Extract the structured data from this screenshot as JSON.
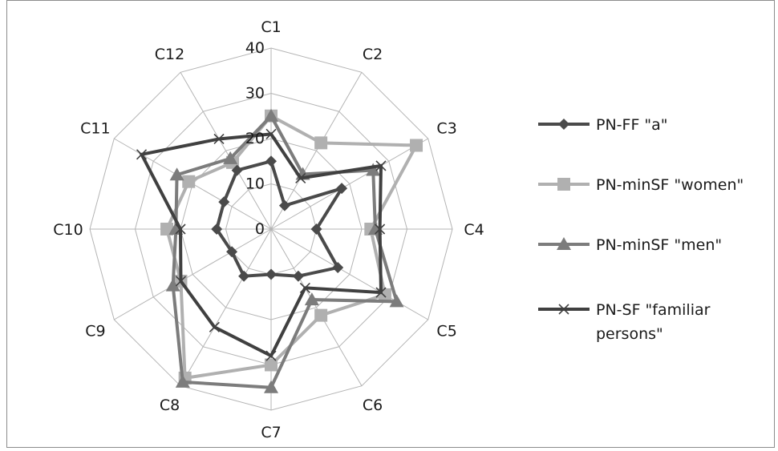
{
  "chart_data": {
    "type": "radar",
    "categories": [
      "C1",
      "C2",
      "C3",
      "C4",
      "C5",
      "C6",
      "C7",
      "C8",
      "C9",
      "C10",
      "C11",
      "C12"
    ],
    "rlim": [
      0,
      40
    ],
    "ticks": [
      "0",
      "10",
      "20",
      "30",
      "40"
    ],
    "tick_values": [
      0,
      10,
      20,
      30,
      40
    ],
    "grid": true,
    "legend_position": "right",
    "series": [
      {
        "name": "PN-FF \"a\"",
        "color": "#4a4a4a",
        "marker": "diamond",
        "values": [
          15,
          6,
          18,
          10,
          17,
          12,
          10,
          12,
          10,
          12,
          12,
          15
        ]
      },
      {
        "name": "PN-minSF \"women\"",
        "color": "#b0b0b0",
        "marker": "square",
        "values": [
          25,
          22,
          37,
          22,
          29,
          22,
          30,
          38,
          23,
          23,
          21,
          17
        ]
      },
      {
        "name": "PN-minSF \"men\"",
        "color": "#7c7c7c",
        "marker": "triangle",
        "values": [
          25,
          14,
          26,
          23,
          32,
          18,
          35,
          39,
          25,
          21,
          24,
          18
        ]
      },
      {
        "name": "PN-SF \"familiar persons\"",
        "color": "#404040",
        "marker": "x",
        "values": [
          21,
          13,
          28,
          24,
          28,
          15,
          28,
          25,
          23,
          20,
          33,
          23
        ]
      }
    ]
  }
}
